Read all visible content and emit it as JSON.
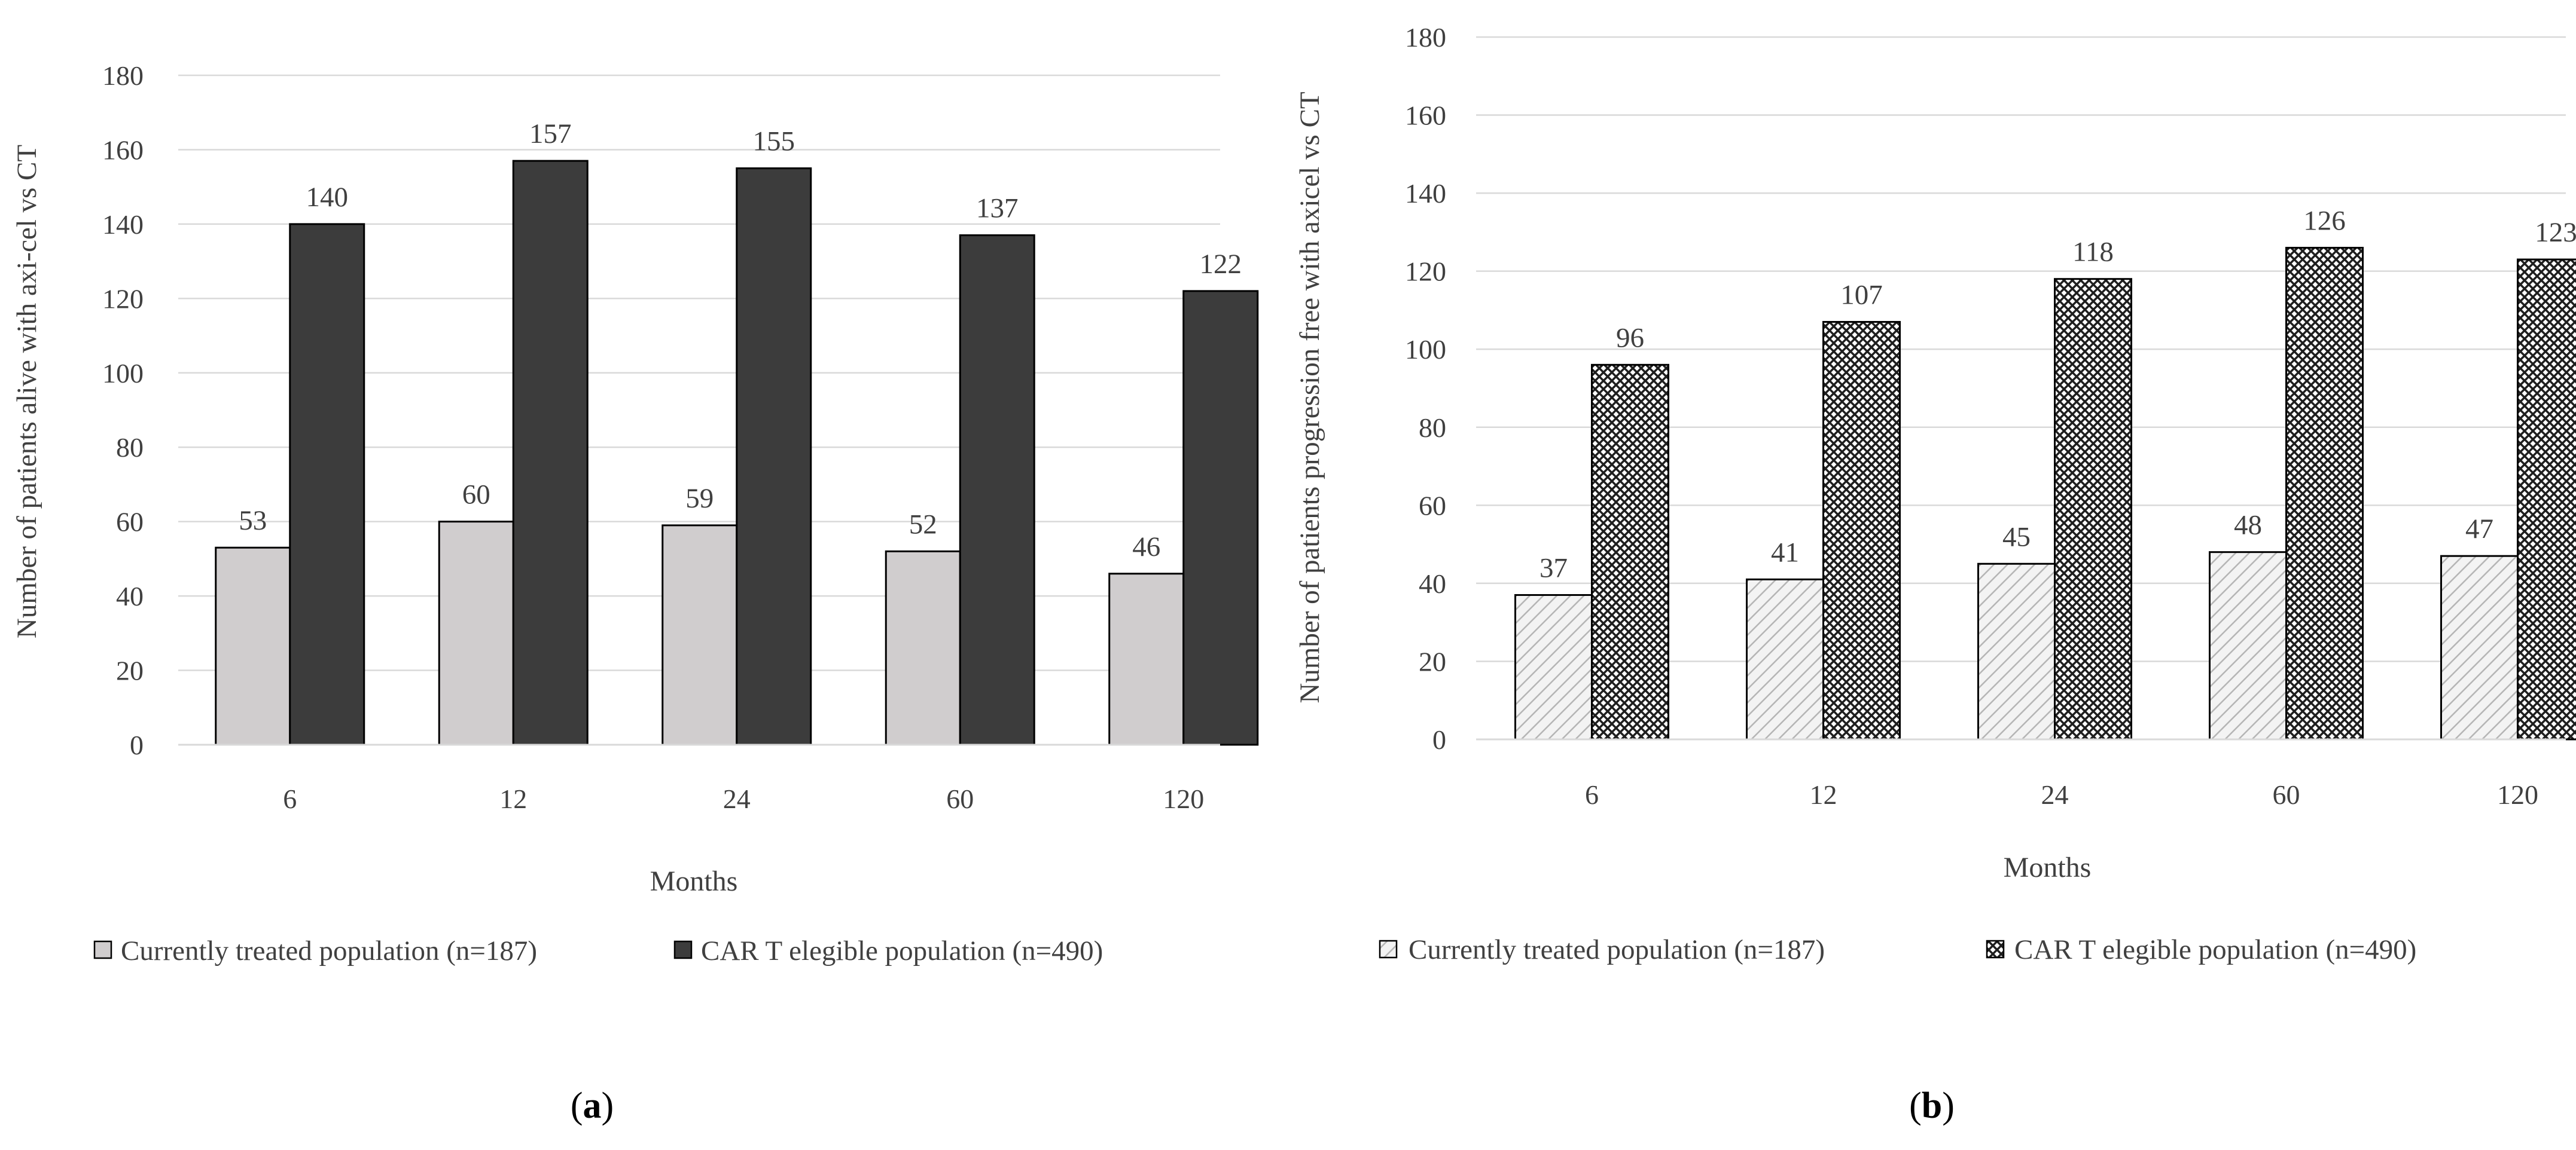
{
  "chart_data": [
    {
      "type": "bar",
      "panel_label": "a",
      "title": "",
      "xlabel": "Months",
      "ylabel": "Number of patients alive with axi-cel vs CT",
      "ylim": [
        0,
        180
      ],
      "y_ticks": [
        "0",
        "20",
        "40",
        "60",
        "80",
        "100",
        "120",
        "140",
        "160",
        "180"
      ],
      "categories": [
        "6",
        "12",
        "24",
        "60",
        "120"
      ],
      "series": [
        {
          "name": "Currently treated population (n=187)",
          "values": [
            53,
            60,
            59,
            52,
            46
          ],
          "color": "#d0cdce",
          "fill_style": "solid"
        },
        {
          "name": "CAR T elegible population (n=490)",
          "values": [
            140,
            157,
            155,
            137,
            122
          ],
          "color": "#3c3c3c",
          "fill_style": "solid"
        }
      ],
      "grid": true,
      "legend_position": "bottom"
    },
    {
      "type": "bar",
      "panel_label": "b",
      "title": "",
      "xlabel": "Months",
      "ylabel": "Number of patients progression free with axicel vs CT",
      "ylim": [
        0,
        180
      ],
      "y_ticks": [
        "0",
        "20",
        "40",
        "60",
        "80",
        "100",
        "120",
        "140",
        "160",
        "180"
      ],
      "categories": [
        "6",
        "12",
        "24",
        "60",
        "120"
      ],
      "series": [
        {
          "name": "Currently treated population (n=187)",
          "values": [
            37,
            41,
            45,
            48,
            47
          ],
          "color": "#bdbdbd",
          "fill_style": "light-diagonal"
        },
        {
          "name": "CAR T elegible population (n=490)",
          "values": [
            96,
            107,
            118,
            126,
            123
          ],
          "color": "#1e1e1e",
          "fill_style": "crosshatch"
        }
      ],
      "grid": true,
      "legend_position": "bottom"
    }
  ]
}
